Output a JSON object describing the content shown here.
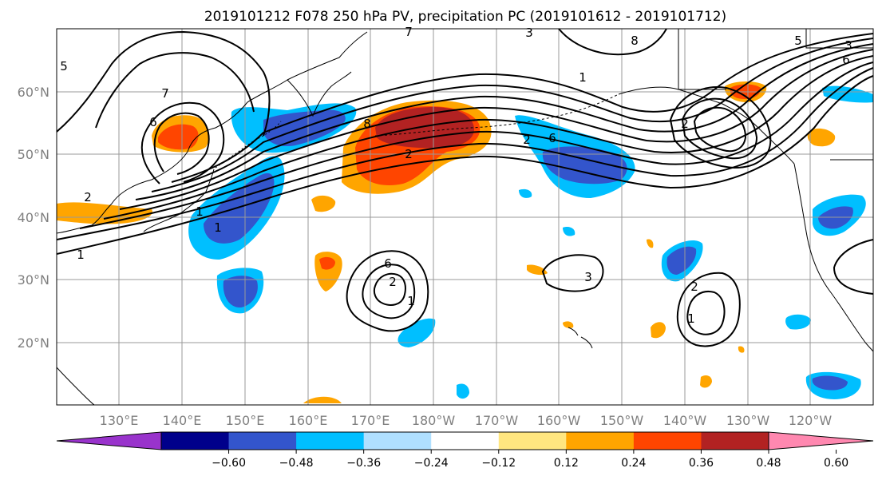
{
  "title": "2019101212 F078 250 hPa PV, precipitation PC (2019101612 - 2019101712)",
  "lat_labels": [
    "60°N",
    "50°N",
    "40°N",
    "30°N",
    "20°N"
  ],
  "lon_labels": [
    "130°E",
    "140°E",
    "150°E",
    "160°E",
    "170°E",
    "180°W",
    "170°W",
    "160°W",
    "150°W",
    "140°W",
    "130°W",
    "120°W"
  ],
  "colorbar": {
    "tick_labels": [
      "-0.60",
      "-0.48",
      "-0.36",
      "-0.24",
      "-0.12",
      "0.12",
      "0.24",
      "0.36",
      "0.48",
      "0.60"
    ],
    "colors": [
      "#9933cc",
      "#00008b",
      "#3355cc",
      "#00bfff",
      "#b0e0ff",
      "#ffffff",
      "#ffe680",
      "#ffa500",
      "#ff4500",
      "#b22222",
      "#ff88b0"
    ]
  },
  "contour_labels": [
    "5",
    "7",
    "6",
    "2",
    "1",
    "2",
    "3",
    "1",
    "2",
    "6",
    "8",
    "5",
    "3",
    "6",
    "7",
    "8",
    "6",
    "2",
    "1",
    "3",
    "2",
    "1",
    "1",
    "1",
    "2"
  ]
}
